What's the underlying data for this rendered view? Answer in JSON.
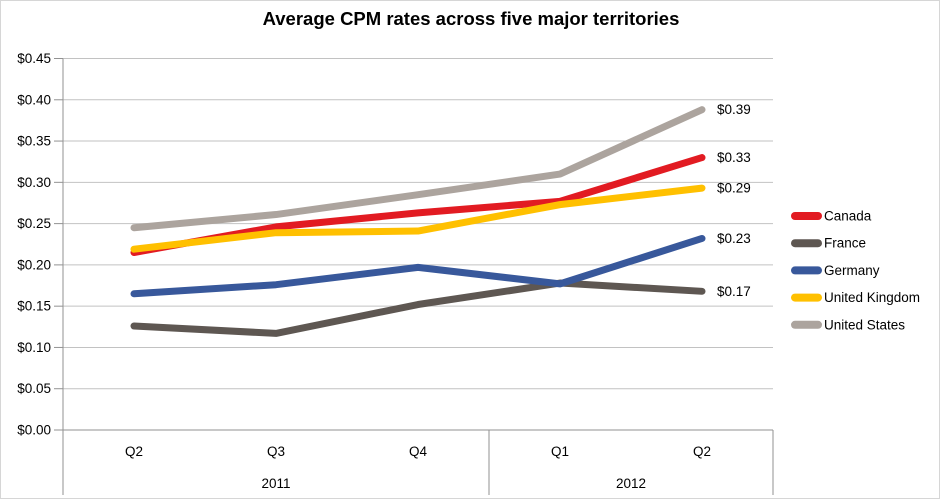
{
  "chart_data": {
    "type": "line",
    "title": "Average CPM rates across five major territories",
    "x_axis": {
      "quarter_labels": [
        "Q2",
        "Q3",
        "Q4",
        "Q1",
        "Q2"
      ],
      "year_groups": [
        {
          "label": "2011",
          "span": [
            0,
            2
          ]
        },
        {
          "label": "2012",
          "span": [
            3,
            4
          ]
        }
      ]
    },
    "y_axis": {
      "min": 0,
      "max": 0.45,
      "step": 0.05,
      "tick_labels_top_to_bottom": [
        "$0.45",
        "$0.40",
        "$0.35",
        "$0.30",
        "$0.25",
        "$0.20",
        "$0.15",
        "$0.10",
        "$0.05",
        "$0.00"
      ],
      "grid": true
    },
    "series": [
      {
        "name": "Canada",
        "color": "#e21b22",
        "values": [
          0.215,
          0.246,
          0.263,
          0.277,
          0.33
        ],
        "end_label": "$0.33"
      },
      {
        "name": "France",
        "color": "#5e5752",
        "values": [
          0.126,
          0.117,
          0.152,
          0.178,
          0.168
        ],
        "end_label": "$0.17"
      },
      {
        "name": "Germany",
        "color": "#38589b",
        "values": [
          0.165,
          0.176,
          0.197,
          0.177,
          0.232
        ],
        "end_label": "$0.23"
      },
      {
        "name": "United Kingdom",
        "color": "#ffc000",
        "values": [
          0.219,
          0.239,
          0.241,
          0.273,
          0.293
        ],
        "end_label": "$0.29"
      },
      {
        "name": "United States",
        "color": "#aca49e",
        "values": [
          0.245,
          0.261,
          0.285,
          0.31,
          0.388
        ],
        "end_label": "$0.39"
      }
    ],
    "legend": {
      "position": "right",
      "entries": [
        "Canada",
        "France",
        "Germany",
        "United Kingdom",
        "United States"
      ]
    },
    "colors": {
      "gridline": "#c2c2c2",
      "axis": "#929292",
      "text": "#000000",
      "background": "#ffffff"
    }
  }
}
